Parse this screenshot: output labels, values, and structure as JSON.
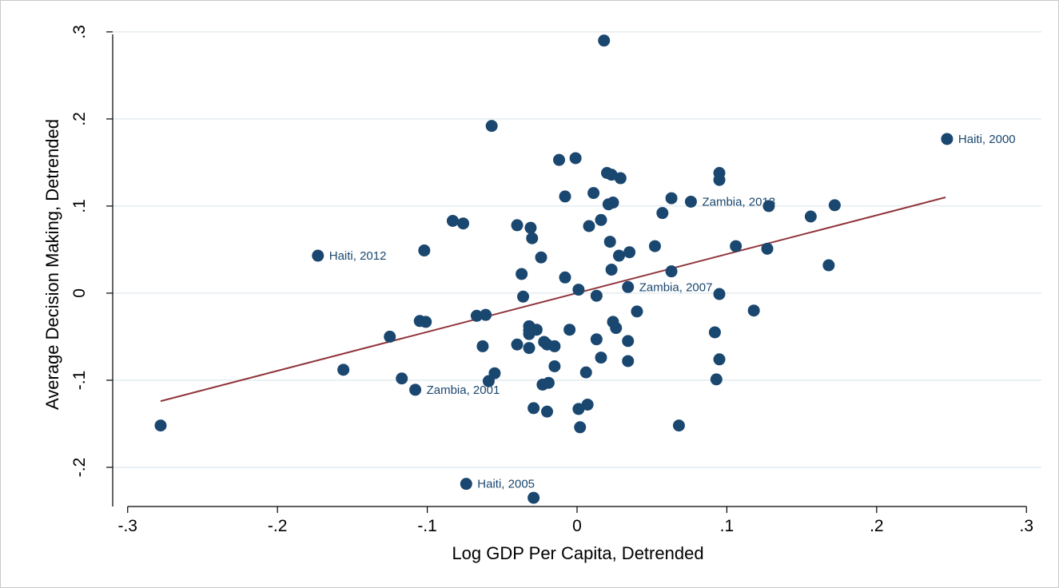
{
  "chart_data": {
    "type": "scatter",
    "title": "",
    "xlabel": "Log GDP Per Capita, Detrended",
    "ylabel": "Average Decision Making, Detrended",
    "xlim": [
      -0.31,
      0.31
    ],
    "ylim": [
      -0.245,
      0.31
    ],
    "xticks": [
      -0.3,
      -0.2,
      -0.1,
      0,
      0.1,
      0.2,
      0.3
    ],
    "xtick_labels": [
      "-.3",
      "-.2",
      "-.1",
      "0",
      ".1",
      ".2",
      ".3"
    ],
    "yticks": [
      -0.2,
      -0.1,
      0,
      0.1,
      0.2,
      0.3
    ],
    "ytick_labels": [
      "-.2",
      "-.1",
      "0",
      ".1",
      ".2",
      ".3"
    ],
    "grid": true,
    "legend": "none",
    "colors": {
      "points": "#1a476f",
      "fit_line": "#90353b",
      "grid": "#e4ecef",
      "labels": "#1a476f"
    },
    "fit_line": {
      "x": [
        -0.278,
        0.246
      ],
      "y": [
        -0.124,
        0.11
      ]
    },
    "points": [
      {
        "x": 0.018,
        "y": 0.29
      },
      {
        "x": -0.057,
        "y": 0.192
      },
      {
        "x": 0.247,
        "y": 0.177,
        "label": "Haiti, 2000"
      },
      {
        "x": -0.001,
        "y": 0.155
      },
      {
        "x": -0.012,
        "y": 0.153
      },
      {
        "x": 0.02,
        "y": 0.138
      },
      {
        "x": 0.023,
        "y": 0.136
      },
      {
        "x": 0.029,
        "y": 0.132
      },
      {
        "x": 0.095,
        "y": 0.138
      },
      {
        "x": 0.095,
        "y": 0.13
      },
      {
        "x": 0.011,
        "y": 0.115
      },
      {
        "x": -0.008,
        "y": 0.111
      },
      {
        "x": 0.063,
        "y": 0.109
      },
      {
        "x": 0.076,
        "y": 0.105,
        "label": "Zambia, 2013"
      },
      {
        "x": 0.021,
        "y": 0.102
      },
      {
        "x": 0.024,
        "y": 0.104
      },
      {
        "x": 0.128,
        "y": 0.1
      },
      {
        "x": 0.172,
        "y": 0.101
      },
      {
        "x": 0.057,
        "y": 0.092
      },
      {
        "x": 0.156,
        "y": 0.088
      },
      {
        "x": 0.016,
        "y": 0.084
      },
      {
        "x": -0.083,
        "y": 0.083
      },
      {
        "x": -0.076,
        "y": 0.08
      },
      {
        "x": 0.008,
        "y": 0.077
      },
      {
        "x": -0.04,
        "y": 0.078
      },
      {
        "x": -0.031,
        "y": 0.075
      },
      {
        "x": -0.03,
        "y": 0.063
      },
      {
        "x": 0.022,
        "y": 0.059
      },
      {
        "x": 0.052,
        "y": 0.054
      },
      {
        "x": 0.106,
        "y": 0.054
      },
      {
        "x": 0.127,
        "y": 0.051
      },
      {
        "x": -0.102,
        "y": 0.049
      },
      {
        "x": 0.035,
        "y": 0.047
      },
      {
        "x": -0.173,
        "y": 0.043,
        "label": "Haiti, 2012"
      },
      {
        "x": 0.028,
        "y": 0.043
      },
      {
        "x": -0.024,
        "y": 0.041
      },
      {
        "x": 0.168,
        "y": 0.032
      },
      {
        "x": 0.023,
        "y": 0.027
      },
      {
        "x": 0.063,
        "y": 0.025
      },
      {
        "x": -0.037,
        "y": 0.022
      },
      {
        "x": -0.008,
        "y": 0.018
      },
      {
        "x": 0.034,
        "y": 0.007,
        "label": "Zambia, 2007"
      },
      {
        "x": 0.001,
        "y": 0.004
      },
      {
        "x": 0.095,
        "y": -0.001
      },
      {
        "x": 0.013,
        "y": -0.003
      },
      {
        "x": -0.036,
        "y": -0.004
      },
      {
        "x": 0.118,
        "y": -0.02
      },
      {
        "x": 0.04,
        "y": -0.021
      },
      {
        "x": -0.067,
        "y": -0.026
      },
      {
        "x": -0.061,
        "y": -0.025
      },
      {
        "x": -0.105,
        "y": -0.032
      },
      {
        "x": -0.101,
        "y": -0.033
      },
      {
        "x": 0.024,
        "y": -0.033
      },
      {
        "x": -0.032,
        "y": -0.038
      },
      {
        "x": -0.027,
        "y": -0.042
      },
      {
        "x": 0.026,
        "y": -0.04
      },
      {
        "x": -0.032,
        "y": -0.043
      },
      {
        "x": -0.005,
        "y": -0.042
      },
      {
        "x": 0.092,
        "y": -0.045
      },
      {
        "x": -0.032,
        "y": -0.047
      },
      {
        "x": -0.125,
        "y": -0.05
      },
      {
        "x": 0.013,
        "y": -0.053
      },
      {
        "x": 0.034,
        "y": -0.055
      },
      {
        "x": -0.022,
        "y": -0.056
      },
      {
        "x": -0.02,
        "y": -0.059
      },
      {
        "x": -0.04,
        "y": -0.059
      },
      {
        "x": -0.015,
        "y": -0.061
      },
      {
        "x": -0.063,
        "y": -0.061
      },
      {
        "x": -0.032,
        "y": -0.063
      },
      {
        "x": 0.016,
        "y": -0.074
      },
      {
        "x": 0.095,
        "y": -0.076
      },
      {
        "x": 0.034,
        "y": -0.078
      },
      {
        "x": -0.015,
        "y": -0.084
      },
      {
        "x": -0.156,
        "y": -0.088
      },
      {
        "x": 0.006,
        "y": -0.091
      },
      {
        "x": -0.055,
        "y": -0.092
      },
      {
        "x": -0.117,
        "y": -0.098
      },
      {
        "x": 0.093,
        "y": -0.099
      },
      {
        "x": -0.059,
        "y": -0.101
      },
      {
        "x": -0.019,
        "y": -0.103
      },
      {
        "x": -0.023,
        "y": -0.105
      },
      {
        "x": -0.108,
        "y": -0.111,
        "label": "Zambia, 2001"
      },
      {
        "x": 0.007,
        "y": -0.128
      },
      {
        "x": -0.029,
        "y": -0.132
      },
      {
        "x": 0.001,
        "y": -0.133
      },
      {
        "x": -0.02,
        "y": -0.136
      },
      {
        "x": -0.278,
        "y": -0.152
      },
      {
        "x": 0.068,
        "y": -0.152
      },
      {
        "x": 0.002,
        "y": -0.154
      },
      {
        "x": -0.074,
        "y": -0.219,
        "label": "Haiti, 2005"
      },
      {
        "x": -0.029,
        "y": -0.235
      }
    ]
  }
}
